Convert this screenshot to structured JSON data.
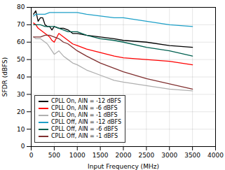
{
  "chart_data": {
    "type": "line",
    "xlabel": "Input Frequency (MHz)",
    "ylabel": "SFDR (dBFS)",
    "xlim": [
      0,
      4000
    ],
    "ylim": [
      0,
      80
    ],
    "xticks": [
      0,
      500,
      1000,
      1500,
      2000,
      2500,
      3000,
      3500,
      4000
    ],
    "yticks": [
      0,
      10,
      20,
      30,
      40,
      50,
      60,
      70,
      80
    ],
    "grid": true,
    "legend": "lower left",
    "series": [
      {
        "name": "CPLL On, AIN = -12 dBFS",
        "color": "#000000",
        "x": [
          50,
          100,
          150,
          200,
          250,
          300,
          350,
          400,
          450,
          500,
          600,
          700,
          800,
          900,
          1000,
          1200,
          1500,
          1800,
          2000,
          2500,
          3000,
          3500
        ],
        "values": [
          76,
          78,
          72,
          74,
          74,
          70,
          69,
          69,
          67,
          69,
          68,
          68,
          67,
          65,
          65,
          64,
          63,
          62,
          61,
          60,
          58,
          57
        ]
      },
      {
        "name": "CPLL On, AIN = -6 dBFS",
        "color": "#ff0000",
        "x": [
          50,
          100,
          150,
          200,
          250,
          300,
          350,
          400,
          450,
          500,
          600,
          700,
          800,
          900,
          1000,
          1200,
          1500,
          1800,
          2000,
          2500,
          3000,
          3500
        ],
        "values": [
          71,
          70,
          68,
          67,
          66,
          65,
          64,
          63,
          61,
          60,
          65,
          63,
          61,
          59,
          58,
          56,
          54,
          52,
          51,
          50,
          49,
          47
        ]
      },
      {
        "name": "CPLL On, AIN = -1 dBFS",
        "color": "#b0b0b0",
        "x": [
          50,
          100,
          150,
          200,
          250,
          300,
          350,
          400,
          450,
          500,
          600,
          700,
          800,
          900,
          1000,
          1200,
          1500,
          1800,
          2000,
          2500,
          3000,
          3500
        ],
        "values": [
          63,
          62,
          62,
          62,
          61,
          60,
          59,
          57,
          55,
          53,
          55,
          52,
          50,
          48,
          47,
          44,
          41,
          38,
          37,
          35,
          33,
          32
        ]
      },
      {
        "name": "CPLL Off, AIN = -12 dBFS",
        "color": "#1ea0c8",
        "x": [
          50,
          100,
          200,
          300,
          400,
          500,
          600,
          700,
          800,
          900,
          1000,
          1200,
          1500,
          1800,
          2000,
          2500,
          3000,
          3500
        ],
        "values": [
          75,
          76,
          76,
          76,
          77,
          77,
          77,
          77,
          77,
          77,
          77,
          76,
          75,
          74,
          74,
          72,
          70,
          69
        ]
      },
      {
        "name": "CPLL Off, AIN = -6 dBFS",
        "color": "#006050",
        "x": [
          50,
          100,
          200,
          300,
          400,
          500,
          600,
          700,
          800,
          900,
          1000,
          1200,
          1500,
          1800,
          2000,
          2500,
          3000,
          3500
        ],
        "values": [
          70,
          70,
          70,
          69,
          69,
          69,
          68,
          67,
          66,
          66,
          66,
          64,
          62,
          61,
          60,
          57,
          55,
          52
        ]
      },
      {
        "name": "CPLL Off, AIN = -1 dBFS",
        "color": "#803030",
        "x": [
          50,
          100,
          200,
          300,
          400,
          500,
          600,
          700,
          800,
          900,
          1000,
          1200,
          1500,
          1800,
          2000,
          2500,
          3000,
          3500
        ],
        "values": [
          63,
          63,
          63,
          64,
          64,
          63,
          62,
          60,
          59,
          57,
          55,
          52,
          48,
          45,
          43,
          39,
          36,
          33
        ]
      }
    ]
  }
}
